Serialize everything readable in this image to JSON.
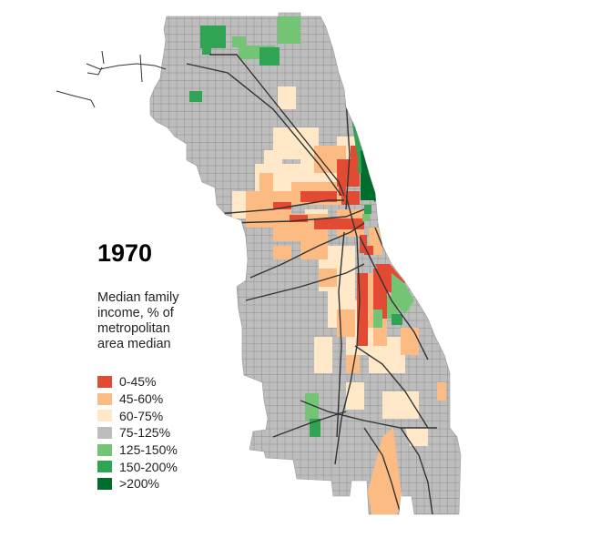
{
  "title": "1970",
  "subtitle_lines": [
    "Median family",
    "income, % of",
    "metropolitan",
    "area median"
  ],
  "legend": [
    {
      "label": "0-45%",
      "color": "#e34a33"
    },
    {
      "label": "45-60%",
      "color": "#fdbb84"
    },
    {
      "label": "60-75%",
      "color": "#fee8c8"
    },
    {
      "label": "75-125%",
      "color": "#bdbdbd"
    },
    {
      "label": "125-150%",
      "color": "#74c476"
    },
    {
      "label": "150-200%",
      "color": "#31a354"
    },
    {
      "label": ">200%",
      "color": "#006d2c"
    }
  ],
  "colors": {
    "base_fill": "#bdbdbd",
    "tract_grid": "#8f8f8f",
    "major_roads": "#333333"
  }
}
